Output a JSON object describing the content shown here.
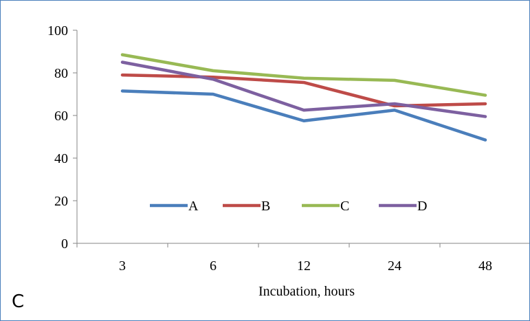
{
  "panel_label": "C",
  "chart_data": {
    "type": "line",
    "title": "",
    "xlabel": "Incubation, hours",
    "ylabel": "",
    "categories": [
      "3",
      "6",
      "12",
      "24",
      "48"
    ],
    "ylim": [
      0,
      100
    ],
    "yticks": [
      0,
      20,
      40,
      60,
      80,
      100
    ],
    "grid": false,
    "legend_position": "bottom-inside",
    "series": [
      {
        "name": "A",
        "color": "#4a7ebb",
        "values": [
          71.5,
          70,
          57.5,
          62.5,
          48.5
        ]
      },
      {
        "name": "B",
        "color": "#be4b48",
        "values": [
          79,
          78,
          75.5,
          64.5,
          65.5
        ]
      },
      {
        "name": "C",
        "color": "#98b954",
        "values": [
          88.5,
          81,
          77.5,
          76.5,
          69.5
        ]
      },
      {
        "name": "D",
        "color": "#7d60a0",
        "values": [
          85,
          77,
          62.5,
          65.5,
          59.5
        ]
      }
    ]
  }
}
